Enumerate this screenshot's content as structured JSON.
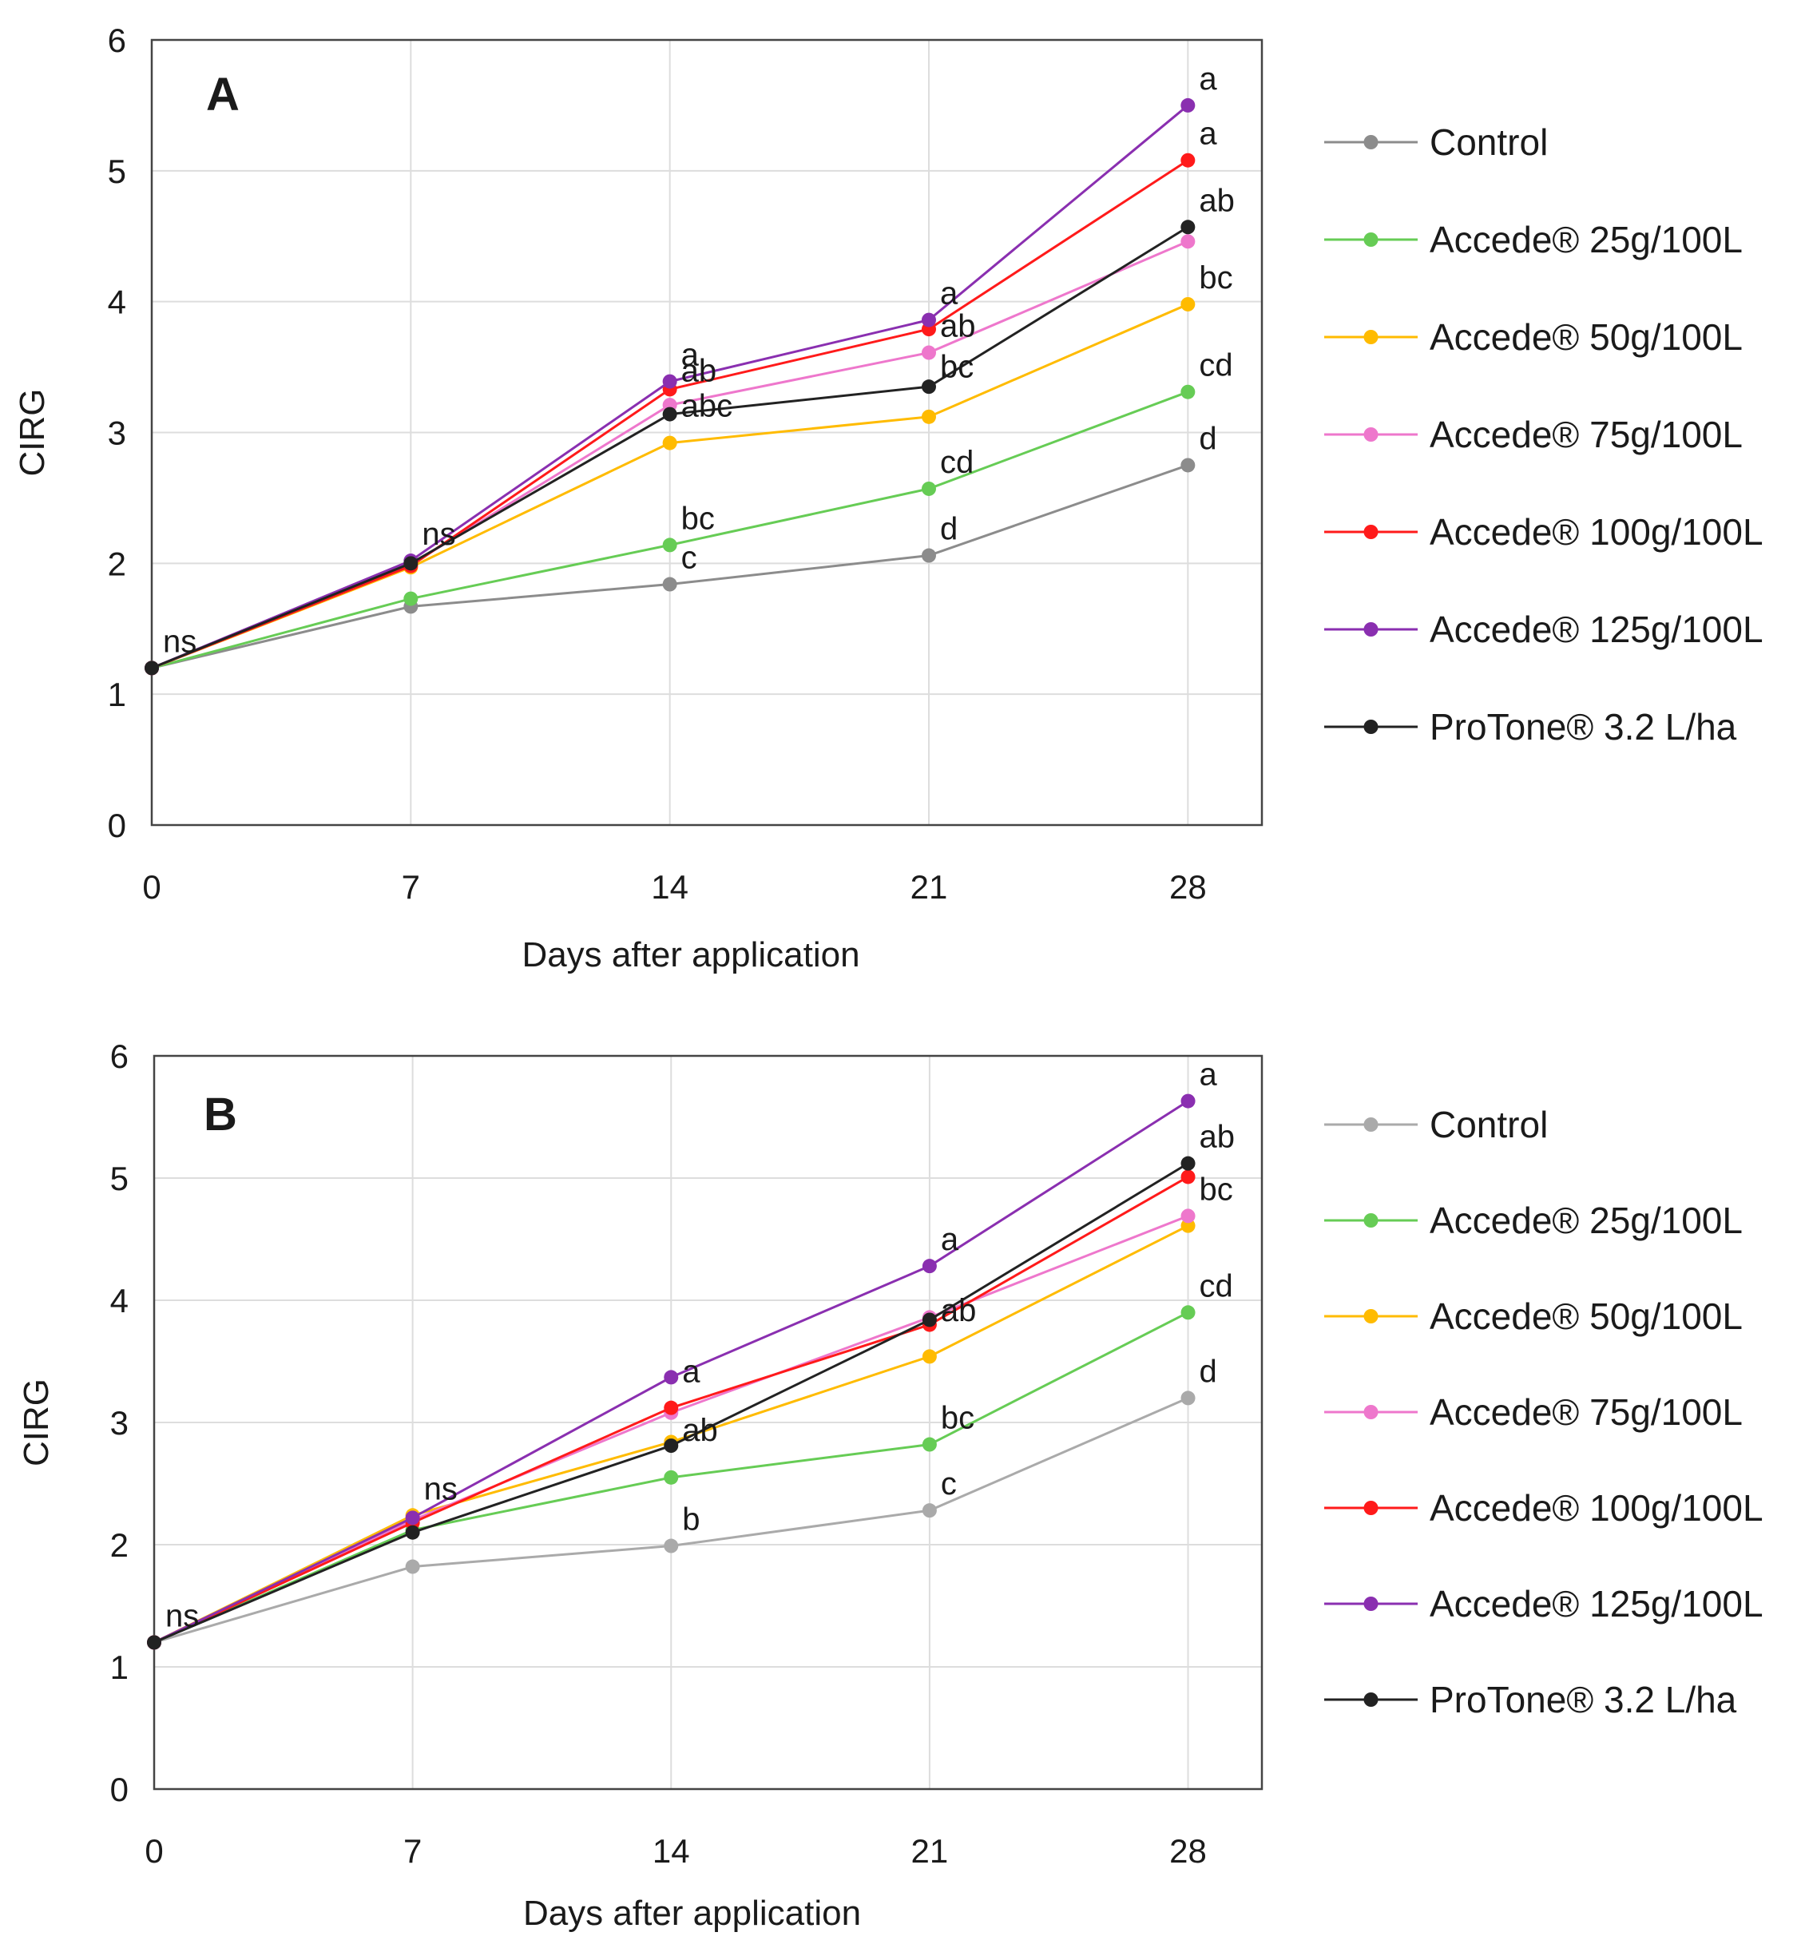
{
  "chart_data": [
    {
      "type": "line",
      "panel_label": "A",
      "xlabel": "Days after application",
      "ylabel": "CIRG",
      "x": [
        0,
        7,
        14,
        21,
        28
      ],
      "x_tick_labels": [
        "0",
        "7",
        "14",
        "21",
        "28"
      ],
      "xlim": [
        0,
        30
      ],
      "ylim": [
        0,
        6
      ],
      "y_tick_labels": [
        "0",
        "1",
        "2",
        "3",
        "4",
        "5",
        "6"
      ],
      "grid": true,
      "legend_position": "right",
      "series": [
        {
          "name": "Control",
          "color": "#8c8c8c",
          "values": [
            1.2,
            1.67,
            1.84,
            2.06,
            2.75
          ]
        },
        {
          "name": "Accede® 25g/100L",
          "color": "#66cc55",
          "values": [
            1.2,
            1.73,
            2.14,
            2.57,
            3.31
          ]
        },
        {
          "name": "Accede® 50g/100L",
          "color": "#ffbb00",
          "values": [
            1.2,
            1.97,
            2.92,
            3.12,
            3.98
          ]
        },
        {
          "name": "Accede® 75g/100L",
          "color": "#ee77cc",
          "values": [
            1.2,
            1.99,
            3.21,
            3.61,
            4.46
          ]
        },
        {
          "name": "Accede® 100g/100L",
          "color": "#ff1a1a",
          "values": [
            1.2,
            1.98,
            3.33,
            3.79,
            5.08
          ]
        },
        {
          "name": "Accede® 125g/100L",
          "color": "#8a2fb0",
          "values": [
            1.2,
            2.02,
            3.39,
            3.86,
            5.5
          ]
        },
        {
          "name": "ProTone® 3.2 L/ha",
          "color": "#222222",
          "values": [
            1.2,
            2.0,
            3.14,
            3.35,
            4.57
          ]
        }
      ],
      "annotations": [
        {
          "x": 0,
          "y": 1.2,
          "text": "ns"
        },
        {
          "x": 7,
          "y": 2.02,
          "text": "ns"
        },
        {
          "x": 14,
          "y": 3.39,
          "text": "a"
        },
        {
          "x": 14,
          "y": 3.27,
          "text": "ab"
        },
        {
          "x": 14,
          "y": 3.0,
          "text": "abc"
        },
        {
          "x": 14,
          "y": 2.14,
          "text": "bc"
        },
        {
          "x": 14,
          "y": 1.84,
          "text": "c"
        },
        {
          "x": 21,
          "y": 3.86,
          "text": "a"
        },
        {
          "x": 21,
          "y": 3.61,
          "text": "ab"
        },
        {
          "x": 21,
          "y": 3.3,
          "text": "bc"
        },
        {
          "x": 21,
          "y": 2.57,
          "text": "cd"
        },
        {
          "x": 21,
          "y": 2.06,
          "text": "d"
        },
        {
          "x": 28,
          "y": 5.5,
          "text": "a"
        },
        {
          "x": 28,
          "y": 5.08,
          "text": "a"
        },
        {
          "x": 28,
          "y": 4.57,
          "text": "ab"
        },
        {
          "x": 28,
          "y": 3.98,
          "text": "bc"
        },
        {
          "x": 28,
          "y": 3.31,
          "text": "cd"
        },
        {
          "x": 28,
          "y": 2.75,
          "text": "d"
        }
      ]
    },
    {
      "type": "line",
      "panel_label": "B",
      "xlabel": "Days after application",
      "ylabel": "CIRG",
      "x": [
        0,
        7,
        14,
        21,
        28
      ],
      "x_tick_labels": [
        "0",
        "7",
        "14",
        "21",
        "28"
      ],
      "xlim": [
        0,
        30
      ],
      "ylim": [
        0,
        6
      ],
      "y_tick_labels": [
        "0",
        "1",
        "2",
        "3",
        "4",
        "5",
        "6"
      ],
      "grid": true,
      "legend_position": "right",
      "series": [
        {
          "name": "Control",
          "color": "#aaaaaa",
          "values": [
            1.2,
            1.82,
            1.99,
            2.28,
            3.2
          ]
        },
        {
          "name": "Accede® 25g/100L",
          "color": "#66cc55",
          "values": [
            1.2,
            2.12,
            2.55,
            2.82,
            3.9
          ]
        },
        {
          "name": "Accede® 50g/100L",
          "color": "#ffbb00",
          "values": [
            1.2,
            2.24,
            2.84,
            3.54,
            4.61
          ]
        },
        {
          "name": "Accede® 75g/100L",
          "color": "#ee77cc",
          "values": [
            1.2,
            2.2,
            3.08,
            3.86,
            4.69
          ]
        },
        {
          "name": "Accede® 100g/100L",
          "color": "#ff1a1a",
          "values": [
            1.2,
            2.18,
            3.12,
            3.8,
            5.01
          ]
        },
        {
          "name": "Accede® 125g/100L",
          "color": "#8a2fb0",
          "values": [
            1.2,
            2.22,
            3.37,
            4.28,
            5.63
          ]
        },
        {
          "name": "ProTone® 3.2 L/ha",
          "color": "#222222",
          "values": [
            1.2,
            2.1,
            2.81,
            3.84,
            5.12
          ]
        }
      ],
      "annotations": [
        {
          "x": 0,
          "y": 1.2,
          "text": "ns"
        },
        {
          "x": 7,
          "y": 2.24,
          "text": "ns"
        },
        {
          "x": 14,
          "y": 3.2,
          "text": "a"
        },
        {
          "x": 14,
          "y": 2.72,
          "text": "ab"
        },
        {
          "x": 14,
          "y": 1.99,
          "text": "b"
        },
        {
          "x": 21,
          "y": 4.28,
          "text": "a"
        },
        {
          "x": 21,
          "y": 3.7,
          "text": "ab"
        },
        {
          "x": 21,
          "y": 2.82,
          "text": "bc"
        },
        {
          "x": 21,
          "y": 2.28,
          "text": "c"
        },
        {
          "x": 28,
          "y": 5.63,
          "text": "a"
        },
        {
          "x": 28,
          "y": 5.12,
          "text": "ab"
        },
        {
          "x": 28,
          "y": 4.69,
          "text": "bc"
        },
        {
          "x": 28,
          "y": 3.9,
          "text": "cd"
        },
        {
          "x": 28,
          "y": 3.2,
          "text": "d"
        }
      ]
    }
  ]
}
